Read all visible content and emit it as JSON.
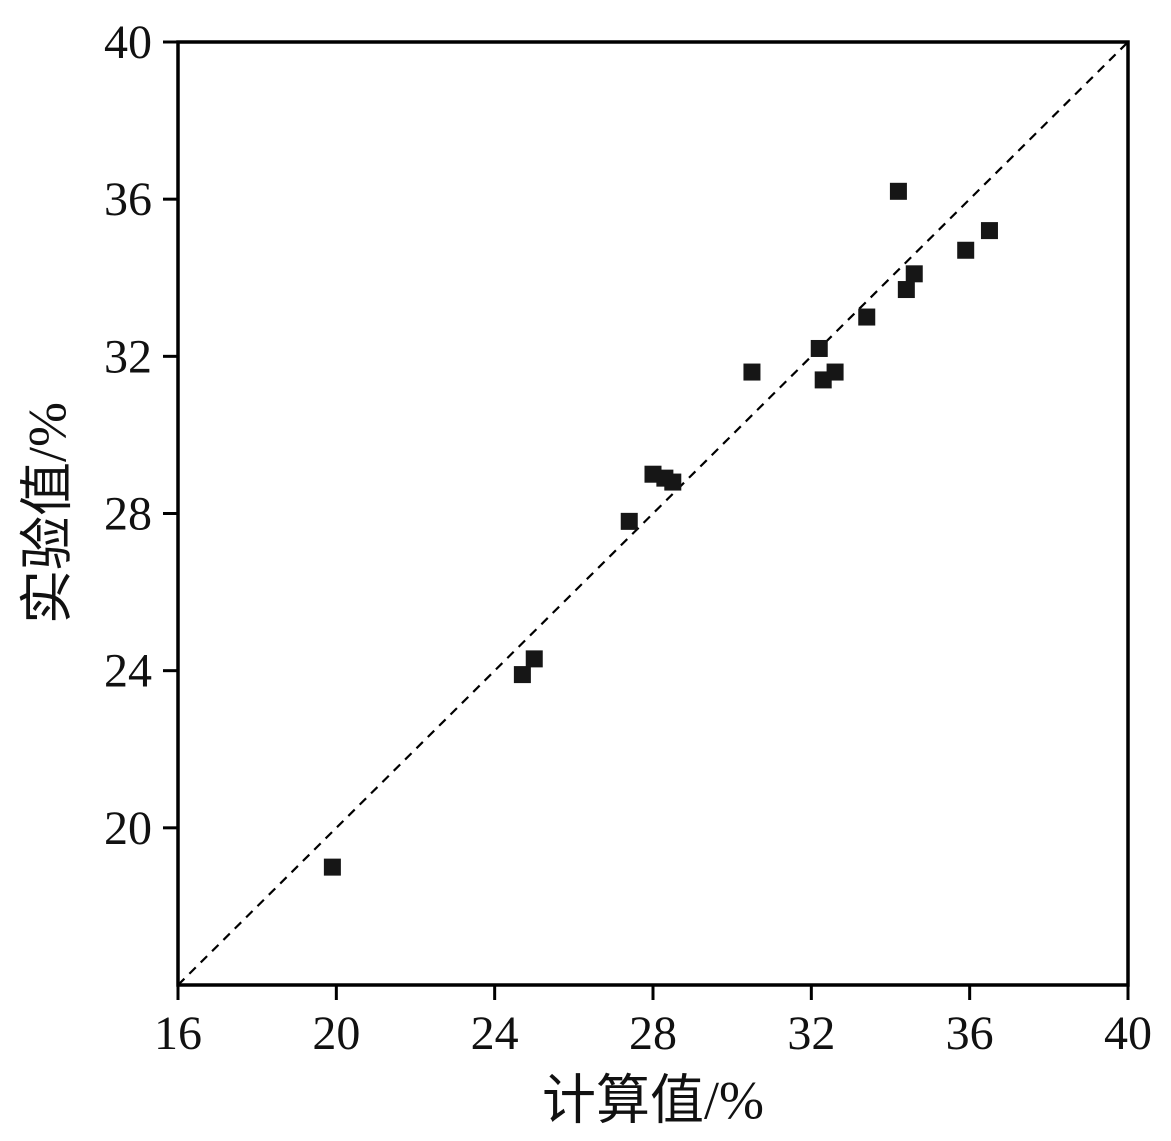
{
  "chart_data": {
    "type": "scatter",
    "title": "",
    "xlabel": "计算值/%",
    "ylabel": "实验值/%",
    "xlim": [
      16,
      40
    ],
    "ylim": [
      16,
      40
    ],
    "x_ticks": [
      16,
      20,
      24,
      28,
      32,
      36,
      40
    ],
    "y_ticks": [
      20,
      24,
      28,
      32,
      36,
      40
    ],
    "grid": false,
    "legend": false,
    "reference_line": {
      "meaning": "y = x identity line",
      "style": "dashed",
      "from": [
        16,
        16
      ],
      "to": [
        40,
        40
      ]
    },
    "series": [
      {
        "name": "experimental vs calculated",
        "marker": "square",
        "color": "#161616",
        "points": [
          [
            19.9,
            19.0
          ],
          [
            24.7,
            23.9
          ],
          [
            25.0,
            24.3
          ],
          [
            27.4,
            27.8
          ],
          [
            28.0,
            29.0
          ],
          [
            28.3,
            28.9
          ],
          [
            28.5,
            28.8
          ],
          [
            30.5,
            31.6
          ],
          [
            32.2,
            32.2
          ],
          [
            32.3,
            31.4
          ],
          [
            32.6,
            31.6
          ],
          [
            33.4,
            33.0
          ],
          [
            34.2,
            36.2
          ],
          [
            34.4,
            33.7
          ],
          [
            34.6,
            34.1
          ],
          [
            35.9,
            34.7
          ],
          [
            36.5,
            35.2
          ]
        ]
      }
    ]
  }
}
